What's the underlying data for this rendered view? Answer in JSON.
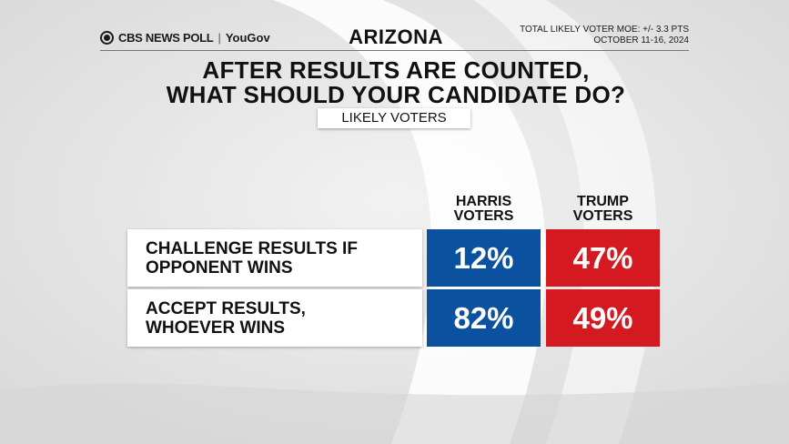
{
  "header": {
    "logo_brand": "CBS NEWS POLL",
    "logo_sep": "|",
    "logo_partner": "YouGov",
    "state": "ARIZONA",
    "moe": "TOTAL LIKELY VOTER MOE: +/- 3.3 PTS",
    "dates": "OCTOBER 11-16, 2024"
  },
  "title_lines": [
    "AFTER RESULTS ARE COUNTED,",
    "WHAT SHOULD YOUR CANDIDATE DO?"
  ],
  "subtitle": "LIKELY VOTERS",
  "colors": {
    "harris": "#0a52a0",
    "trump": "#d41a20"
  },
  "chart_data": {
    "type": "table",
    "columns": [
      {
        "line1": "HARRIS",
        "line2": "VOTERS"
      },
      {
        "line1": "TRUMP",
        "line2": "VOTERS"
      }
    ],
    "rows": [
      {
        "line1": "CHALLENGE RESULTS IF",
        "line2": "OPPONENT WINS",
        "values": [
          "12%",
          "47%"
        ]
      },
      {
        "line1": "ACCEPT RESULTS,",
        "line2": "WHOEVER WINS",
        "values": [
          "82%",
          "49%"
        ]
      }
    ]
  }
}
